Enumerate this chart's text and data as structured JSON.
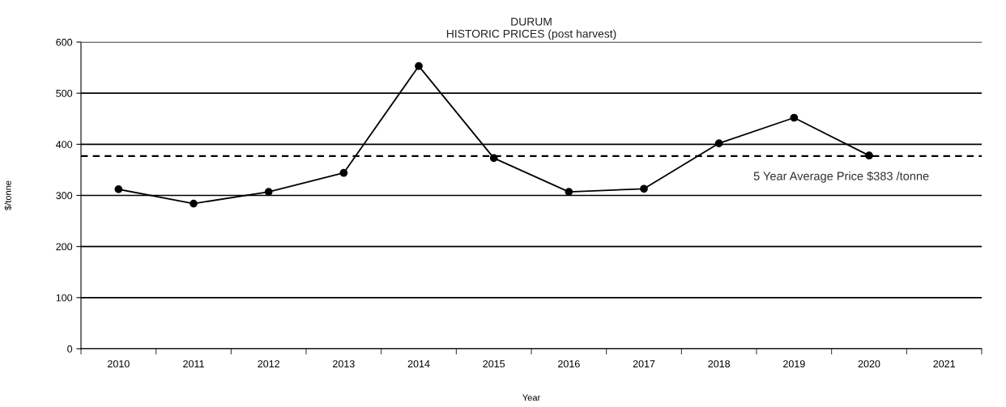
{
  "chart_data": {
    "type": "line",
    "title": "DURUM",
    "subtitle": "HISTORIC PRICES (post harvest)",
    "xlabel": "Year",
    "ylabel": "$/tonne",
    "categories": [
      "2010",
      "2011",
      "2012",
      "2013",
      "2014",
      "2015",
      "2016",
      "2017",
      "2018",
      "2019",
      "2020",
      "2021"
    ],
    "series": [
      {
        "color": "#000000",
        "values": [
          312,
          284,
          307,
          344,
          553,
          373,
          307,
          313,
          402,
          452,
          378,
          null
        ]
      }
    ],
    "ylim": [
      0,
      600
    ],
    "yticks": [
      0,
      100,
      200,
      300,
      400,
      500,
      600
    ],
    "grid": "y",
    "marker": "circle",
    "line_style": "solid",
    "ref_lines": [
      {
        "axis": "y",
        "value": 377,
        "label": "5 Year Average Price $383 /tonne",
        "color": "#000000",
        "line_style": "dashed"
      }
    ]
  }
}
